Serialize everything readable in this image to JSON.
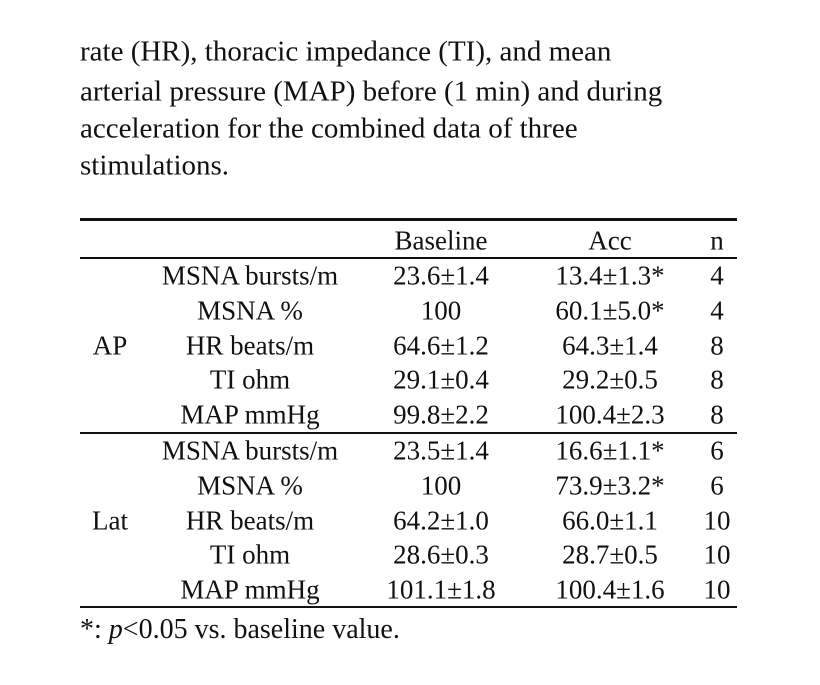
{
  "caption_lines": [
    "rate (HR), thoracic impedance (TI), and mean",
    "arterial pressure (MAP) before (1 min) and during",
    "acceleration for the combined data of three",
    "stimulations."
  ],
  "table": {
    "header": [
      "Baseline",
      "Acc",
      "n"
    ],
    "groups": [
      {
        "label": "AP",
        "rows": [
          [
            "MSNA bursts/m",
            "23.6±1.4",
            "13.4±1.3*",
            "4"
          ],
          [
            "MSNA %",
            "100",
            "60.1±5.0*",
            "4"
          ],
          [
            "HR beats/m",
            "64.6±1.2",
            "64.3±1.4",
            "8"
          ],
          [
            "TI ohm",
            "29.1±0.4",
            "29.2±0.5",
            "8"
          ],
          [
            "MAP mmHg",
            "99.8±2.2",
            "100.4±2.3",
            "8"
          ]
        ]
      },
      {
        "label": "Lat",
        "rows": [
          [
            "MSNA bursts/m",
            "23.5±1.4",
            "16.6±1.1*",
            "6"
          ],
          [
            "MSNA %",
            "100",
            "73.9±3.2*",
            "6"
          ],
          [
            "HR beats/m",
            "64.2±1.0",
            "66.0±1.1",
            "10"
          ],
          [
            "TI ohm",
            "28.6±0.3",
            "28.7±0.5",
            "10"
          ],
          [
            "MAP mmHg",
            "101.1±1.8",
            "100.4±1.6",
            "10"
          ]
        ]
      }
    ]
  },
  "footnote": [
    "*: ",
    "p",
    "<0.05 vs. baseline value."
  ]
}
